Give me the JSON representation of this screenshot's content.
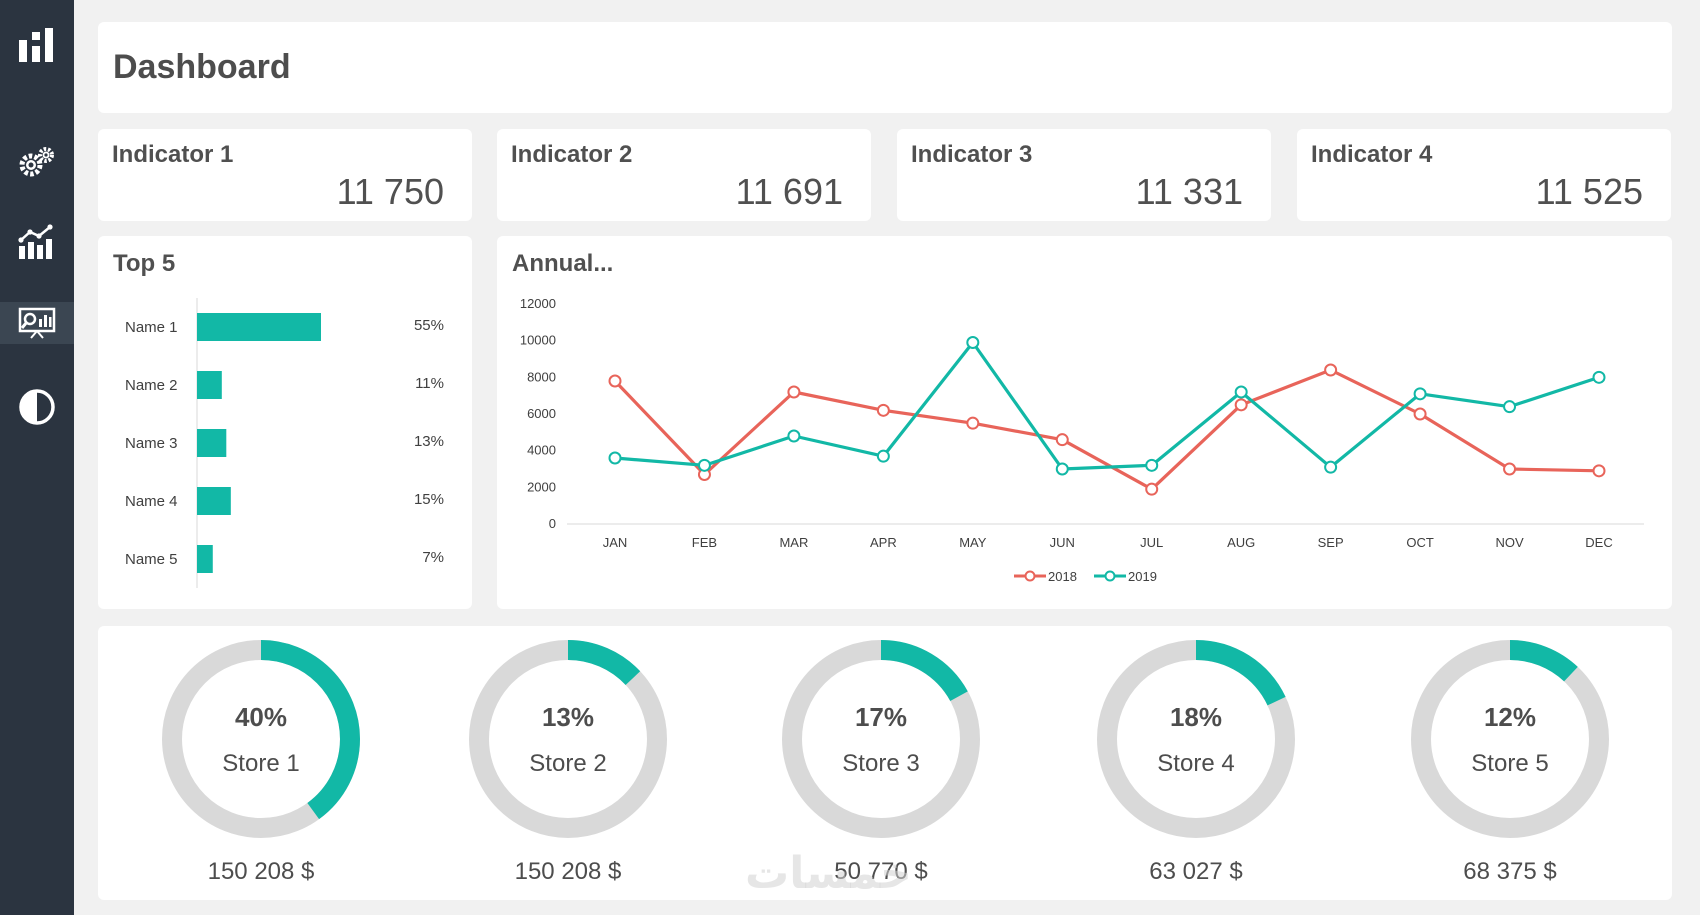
{
  "page": {
    "title": "Dashboard"
  },
  "sidebar": {
    "items": [
      {
        "icon": "logo-bars-icon",
        "active": false
      },
      {
        "icon": "settings-gears-icon",
        "active": false
      },
      {
        "icon": "analytics-chart-icon",
        "active": false
      },
      {
        "icon": "presentation-board-icon",
        "active": true
      },
      {
        "icon": "theme-contrast-icon",
        "active": false
      }
    ]
  },
  "indicators": [
    {
      "label": "Indicator 1",
      "value": "11 750"
    },
    {
      "label": "Indicator 2",
      "value": "11 691"
    },
    {
      "label": "Indicator 3",
      "value": "11 331"
    },
    {
      "label": "Indicator 4",
      "value": "11 525"
    }
  ],
  "top5": {
    "title": "Top 5"
  },
  "annual": {
    "title": "Annual..."
  },
  "stores_colors": {
    "fill": "#12b8a6",
    "track": "#d9d9d9"
  },
  "stores": [
    {
      "pct_label": "40%",
      "name": "Store 1",
      "amount": "150 208 $"
    },
    {
      "pct_label": "13%",
      "name": "Store 2",
      "amount": "150 208 $"
    },
    {
      "pct_label": "17%",
      "name": "Store 3",
      "amount": "50 770 $"
    },
    {
      "pct_label": "18%",
      "name": "Store 4",
      "amount": "63 027 $"
    },
    {
      "pct_label": "12%",
      "name": "Store 5",
      "amount": "68 375 $"
    }
  ],
  "watermark": "خمسات",
  "chart_data": [
    {
      "type": "bar",
      "orientation": "horizontal",
      "title": "Top 5",
      "categories": [
        "Name 1",
        "Name 2",
        "Name 3",
        "Name 4",
        "Name 5"
      ],
      "values": [
        55,
        11,
        13,
        15,
        7
      ],
      "value_labels": [
        "55%",
        "11%",
        "13%",
        "15%",
        "7%"
      ],
      "color": "#12b8a6"
    },
    {
      "type": "line",
      "title": "Annual...",
      "x": [
        "JAN",
        "FEB",
        "MAR",
        "APR",
        "MAY",
        "JUN",
        "JUL",
        "AUG",
        "SEP",
        "OCT",
        "NOV",
        "DEC"
      ],
      "ylim": [
        0,
        12000
      ],
      "yticks": [
        "0",
        "2000",
        "4000",
        "6000",
        "8000",
        "10000",
        "12000"
      ],
      "legend_position": "bottom",
      "series": [
        {
          "name": "2018",
          "color": "#e8645a",
          "values": [
            7800,
            2700,
            7200,
            6200,
            5500,
            4600,
            1900,
            6500,
            8400,
            6000,
            3000,
            2900
          ]
        },
        {
          "name": "2019",
          "color": "#12b8a6",
          "values": [
            3600,
            3200,
            4800,
            3700,
            9900,
            3000,
            3200,
            7200,
            3100,
            7100,
            6400,
            8000
          ]
        }
      ]
    },
    {
      "type": "pie",
      "subtype": "donut",
      "categories": [
        "Store 1",
        "Store 2",
        "Store 3",
        "Store 4",
        "Store 5"
      ],
      "values": [
        40,
        13,
        17,
        18,
        12
      ],
      "color": "#12b8a6",
      "track_color": "#d9d9d9"
    }
  ]
}
